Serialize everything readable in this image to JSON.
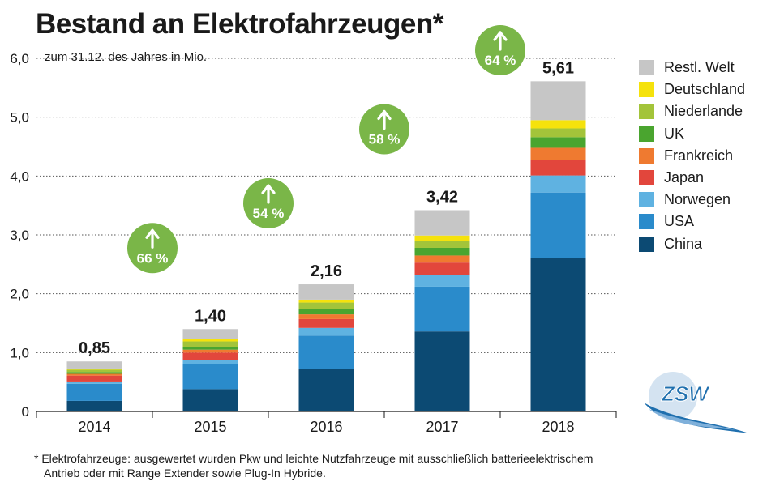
{
  "chart_data": {
    "type": "bar",
    "stacked": true,
    "title": "Bestand an Elektrofahrzeugen*",
    "subtitle": "zum 31.12. des Jahres in Mio.",
    "xlabel": "",
    "ylabel": "",
    "ylim": [
      0,
      6
    ],
    "yticks": [
      "0",
      "1,0",
      "2,0",
      "3,0",
      "4,0",
      "5,0",
      "6,0"
    ],
    "grid": "horizontal-dotted",
    "legend_position": "right",
    "categories": [
      "2014",
      "2015",
      "2016",
      "2017",
      "2018"
    ],
    "totals": [
      "0,85",
      "1,40",
      "2,16",
      "3,42",
      "5,61"
    ],
    "growth_labels": [
      "66 %",
      "54 %",
      "58 %",
      "64 %"
    ],
    "series": [
      {
        "name": "China",
        "color": "#0c4a73",
        "values": [
          0.18,
          0.38,
          0.72,
          1.36,
          2.61
        ]
      },
      {
        "name": "USA",
        "color": "#2a8bcb",
        "values": [
          0.29,
          0.42,
          0.57,
          0.76,
          1.11
        ]
      },
      {
        "name": "Norwegen",
        "color": "#5fb2e1",
        "values": [
          0.04,
          0.07,
          0.13,
          0.2,
          0.29
        ]
      },
      {
        "name": "Japan",
        "color": "#e2463c",
        "values": [
          0.1,
          0.13,
          0.15,
          0.21,
          0.26
        ]
      },
      {
        "name": "Frankreich",
        "color": "#ef7a30",
        "values": [
          0.03,
          0.05,
          0.08,
          0.12,
          0.21
        ]
      },
      {
        "name": "UK",
        "color": "#4aa52f",
        "values": [
          0.03,
          0.05,
          0.09,
          0.13,
          0.18
        ]
      },
      {
        "name": "Niederlande",
        "color": "#a3c43a",
        "values": [
          0.04,
          0.09,
          0.11,
          0.12,
          0.15
        ]
      },
      {
        "name": "Deutschland",
        "color": "#f5e20c",
        "values": [
          0.02,
          0.04,
          0.05,
          0.09,
          0.14
        ]
      },
      {
        "name": "Restl. Welt",
        "color": "#c6c6c6",
        "values": [
          0.12,
          0.17,
          0.26,
          0.43,
          0.66
        ]
      }
    ]
  },
  "footnote": {
    "line1": "* Elektrofahrzeuge: ausgewertet wurden Pkw und leichte Nutzfahrzeuge mit ausschließlich batterieelektrischem",
    "line2": "Antrieb oder mit Range Extender sowie Plug-In Hybride."
  },
  "logo": {
    "text": "ZSW",
    "color": "#1f6fae",
    "icon": "zsw-logo"
  },
  "colors": {
    "growth_badge": "#7ab648",
    "axis": "#1a1a1a",
    "grid": "#555555"
  }
}
